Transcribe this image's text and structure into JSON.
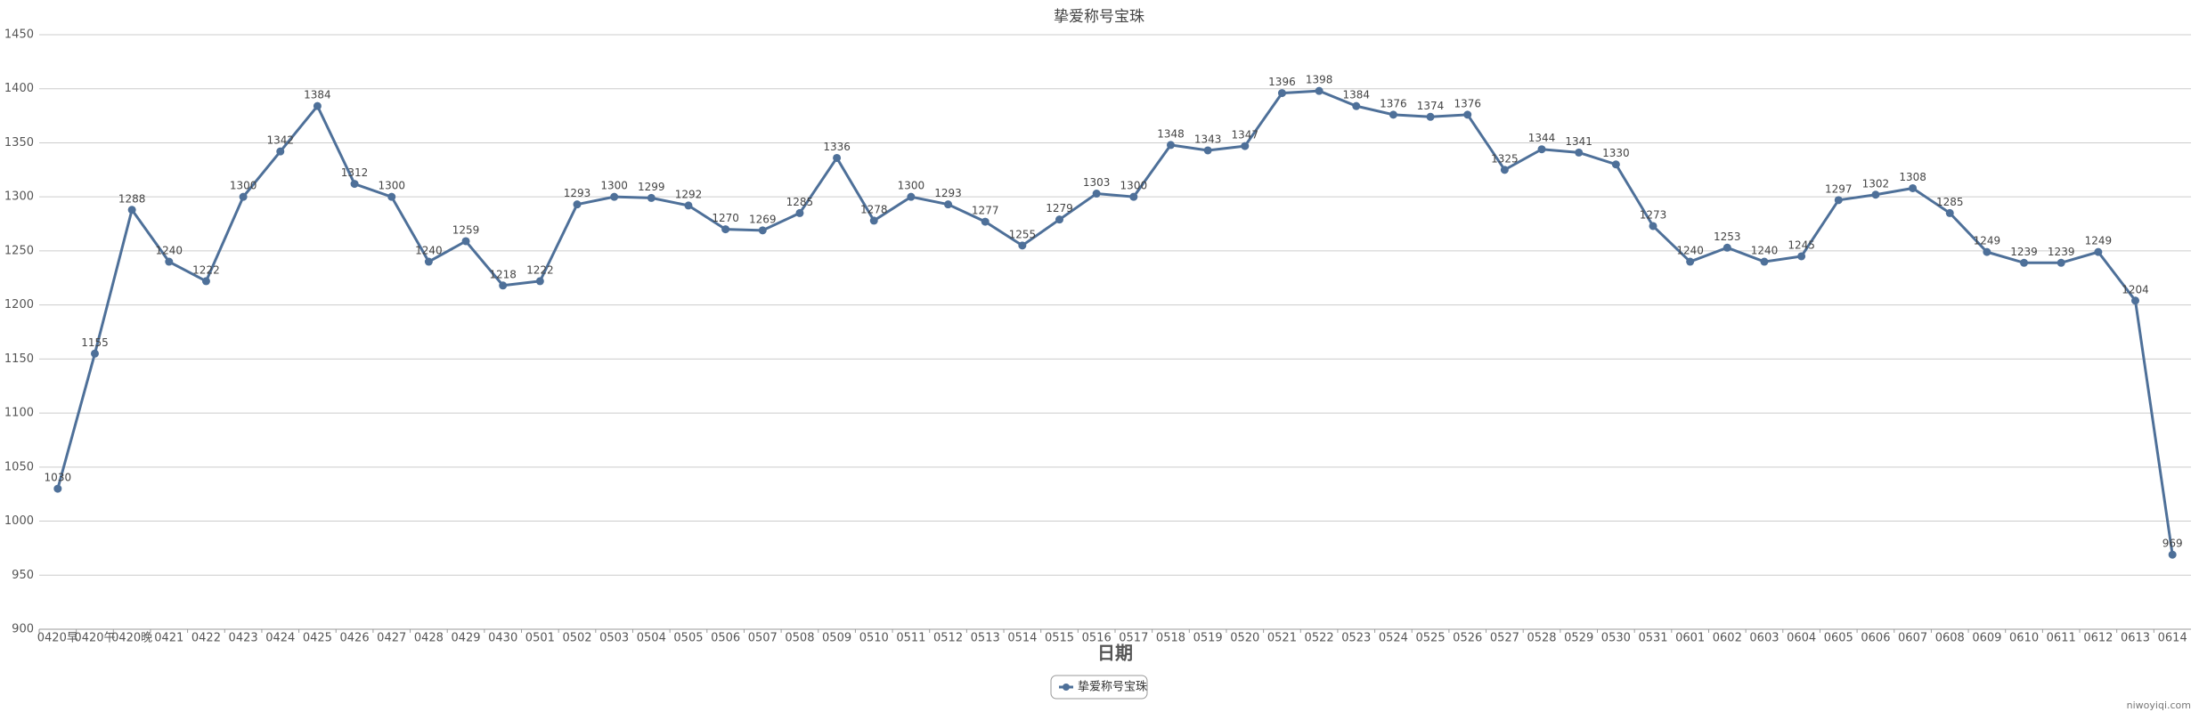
{
  "chart_data": {
    "type": "line",
    "title": "挚爱称号宝珠",
    "x_label": "日期",
    "watermark": "niwoyiqi.com",
    "categories": [
      "0420早",
      "0420午",
      "0420晚",
      "0421",
      "0422",
      "0423",
      "0424",
      "0425",
      "0426",
      "0427",
      "0428",
      "0429",
      "0430",
      "0501",
      "0502",
      "0503",
      "0504",
      "0505",
      "0506",
      "0507",
      "0508",
      "0509",
      "0510",
      "0511",
      "0512",
      "0513",
      "0514",
      "0515",
      "0516",
      "0517",
      "0518",
      "0519",
      "0520",
      "0521",
      "0522",
      "0523",
      "0524",
      "0525",
      "0526",
      "0527",
      "0528",
      "0529",
      "0530",
      "0531",
      "0601",
      "0602",
      "0603",
      "0604",
      "0605",
      "0606",
      "0607",
      "0608",
      "0609",
      "0610",
      "0611",
      "0612",
      "0613",
      "0614"
    ],
    "series": [
      {
        "name": "挚爱称号宝珠",
        "color": "#4e7099",
        "values": [
          1030,
          1155,
          1288,
          1240,
          1222,
          1300,
          1342,
          1384,
          1312,
          1300,
          1240,
          1259,
          1218,
          1222,
          1293,
          1300,
          1299,
          1292,
          1270,
          1269,
          1285,
          1336,
          1278,
          1300,
          1293,
          1277,
          1255,
          1279,
          1303,
          1300,
          1348,
          1343,
          1347,
          1396,
          1398,
          1384,
          1376,
          1374,
          1376,
          1325,
          1344,
          1341,
          1330,
          1273,
          1240,
          1253,
          1240,
          1245,
          1297,
          1302,
          1308,
          1285,
          1249,
          1239,
          1239,
          1249,
          1204,
          969
        ]
      }
    ],
    "ylim": [
      900,
      1450
    ],
    "yticks": [
      900,
      950,
      1000,
      1050,
      1100,
      1150,
      1200,
      1250,
      1300,
      1350,
      1400,
      1450
    ],
    "grid": true,
    "legend": "bottom"
  }
}
